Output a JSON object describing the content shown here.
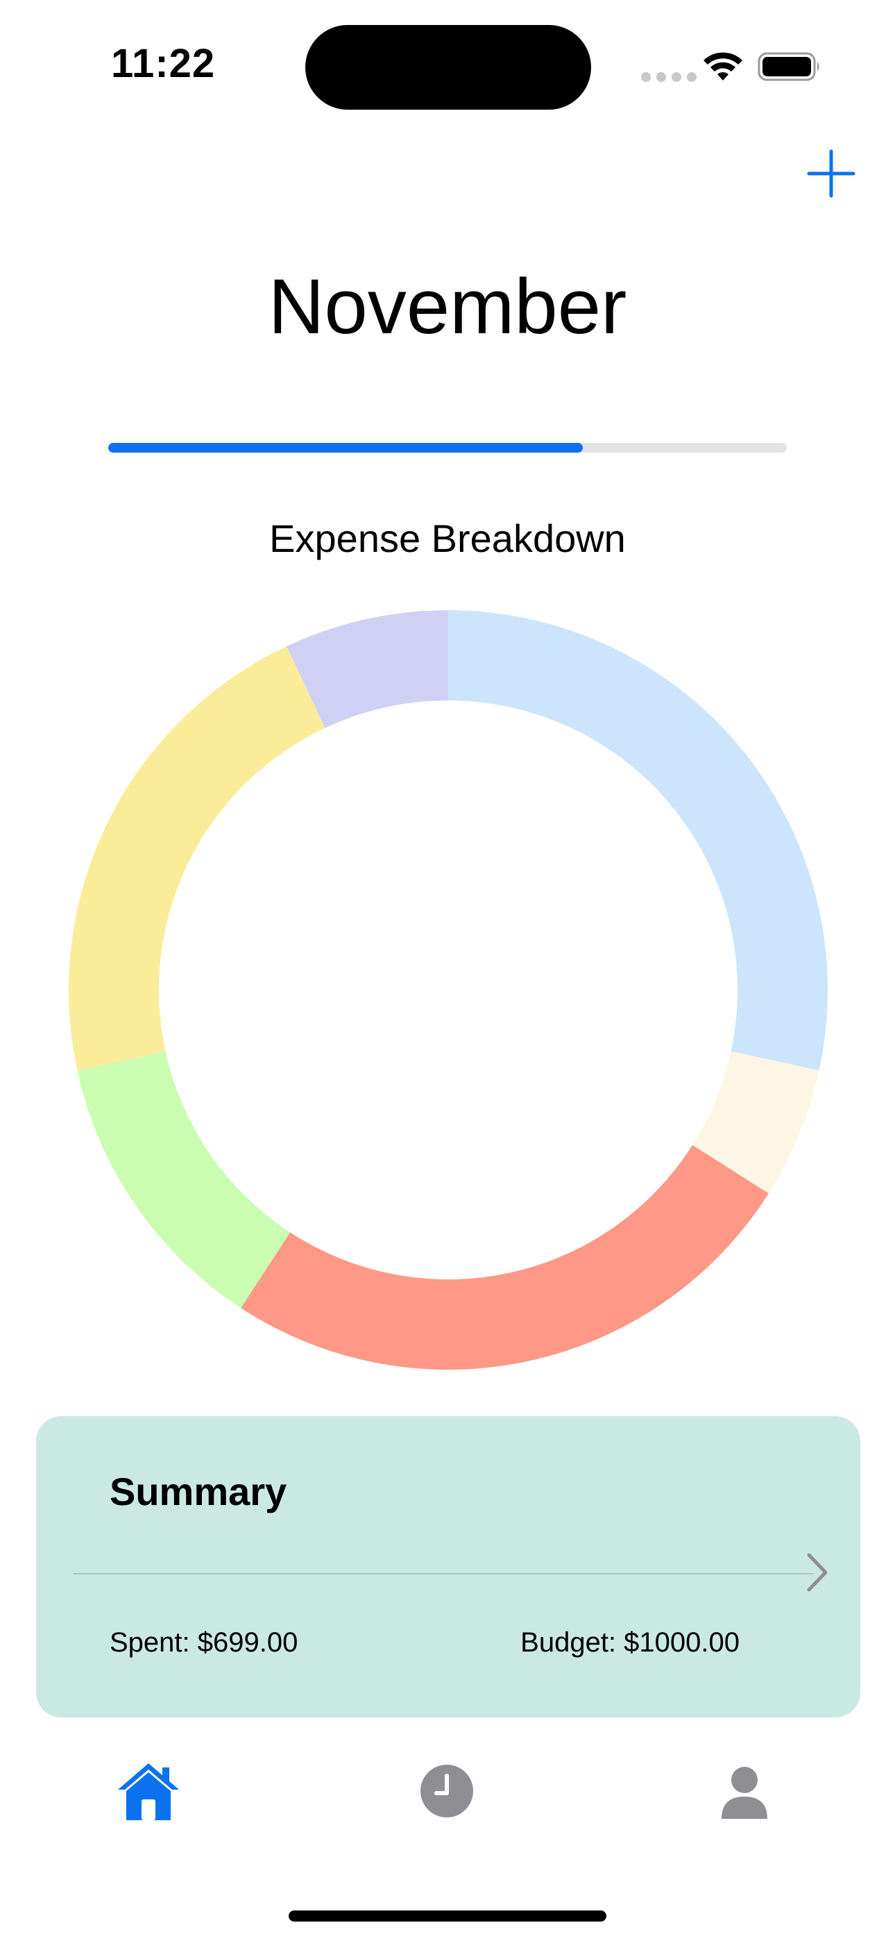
{
  "status_bar": {
    "time": "11:22"
  },
  "header": {
    "add_icon": "plus-icon",
    "title": "November"
  },
  "progress": {
    "fraction": 0.699,
    "color": "#0a72ef",
    "track_color": "#e4e4e6"
  },
  "chart_data": {
    "type": "pie",
    "title": "Expense Breakdown",
    "values": [
      28.4,
      5.6,
      25.2,
      12.4,
      21.4,
      7.0
    ],
    "colors": [
      "#cce5fc",
      "#fdf6e4",
      "#ff9886",
      "#cafcb2",
      "#fbec9a",
      "#d0d0f4"
    ]
  },
  "summary": {
    "title": "Summary",
    "spent_text": "Spent: $699.00",
    "budget_text": "Budget: $1000.00",
    "background": "#cbe9e3"
  },
  "tab_bar": {
    "items": [
      {
        "icon": "home-icon",
        "active": true
      },
      {
        "icon": "clock-icon",
        "active": false
      },
      {
        "icon": "person-icon",
        "active": false
      }
    ],
    "active_color": "#0a72ef",
    "inactive_color": "#8e8e93"
  }
}
